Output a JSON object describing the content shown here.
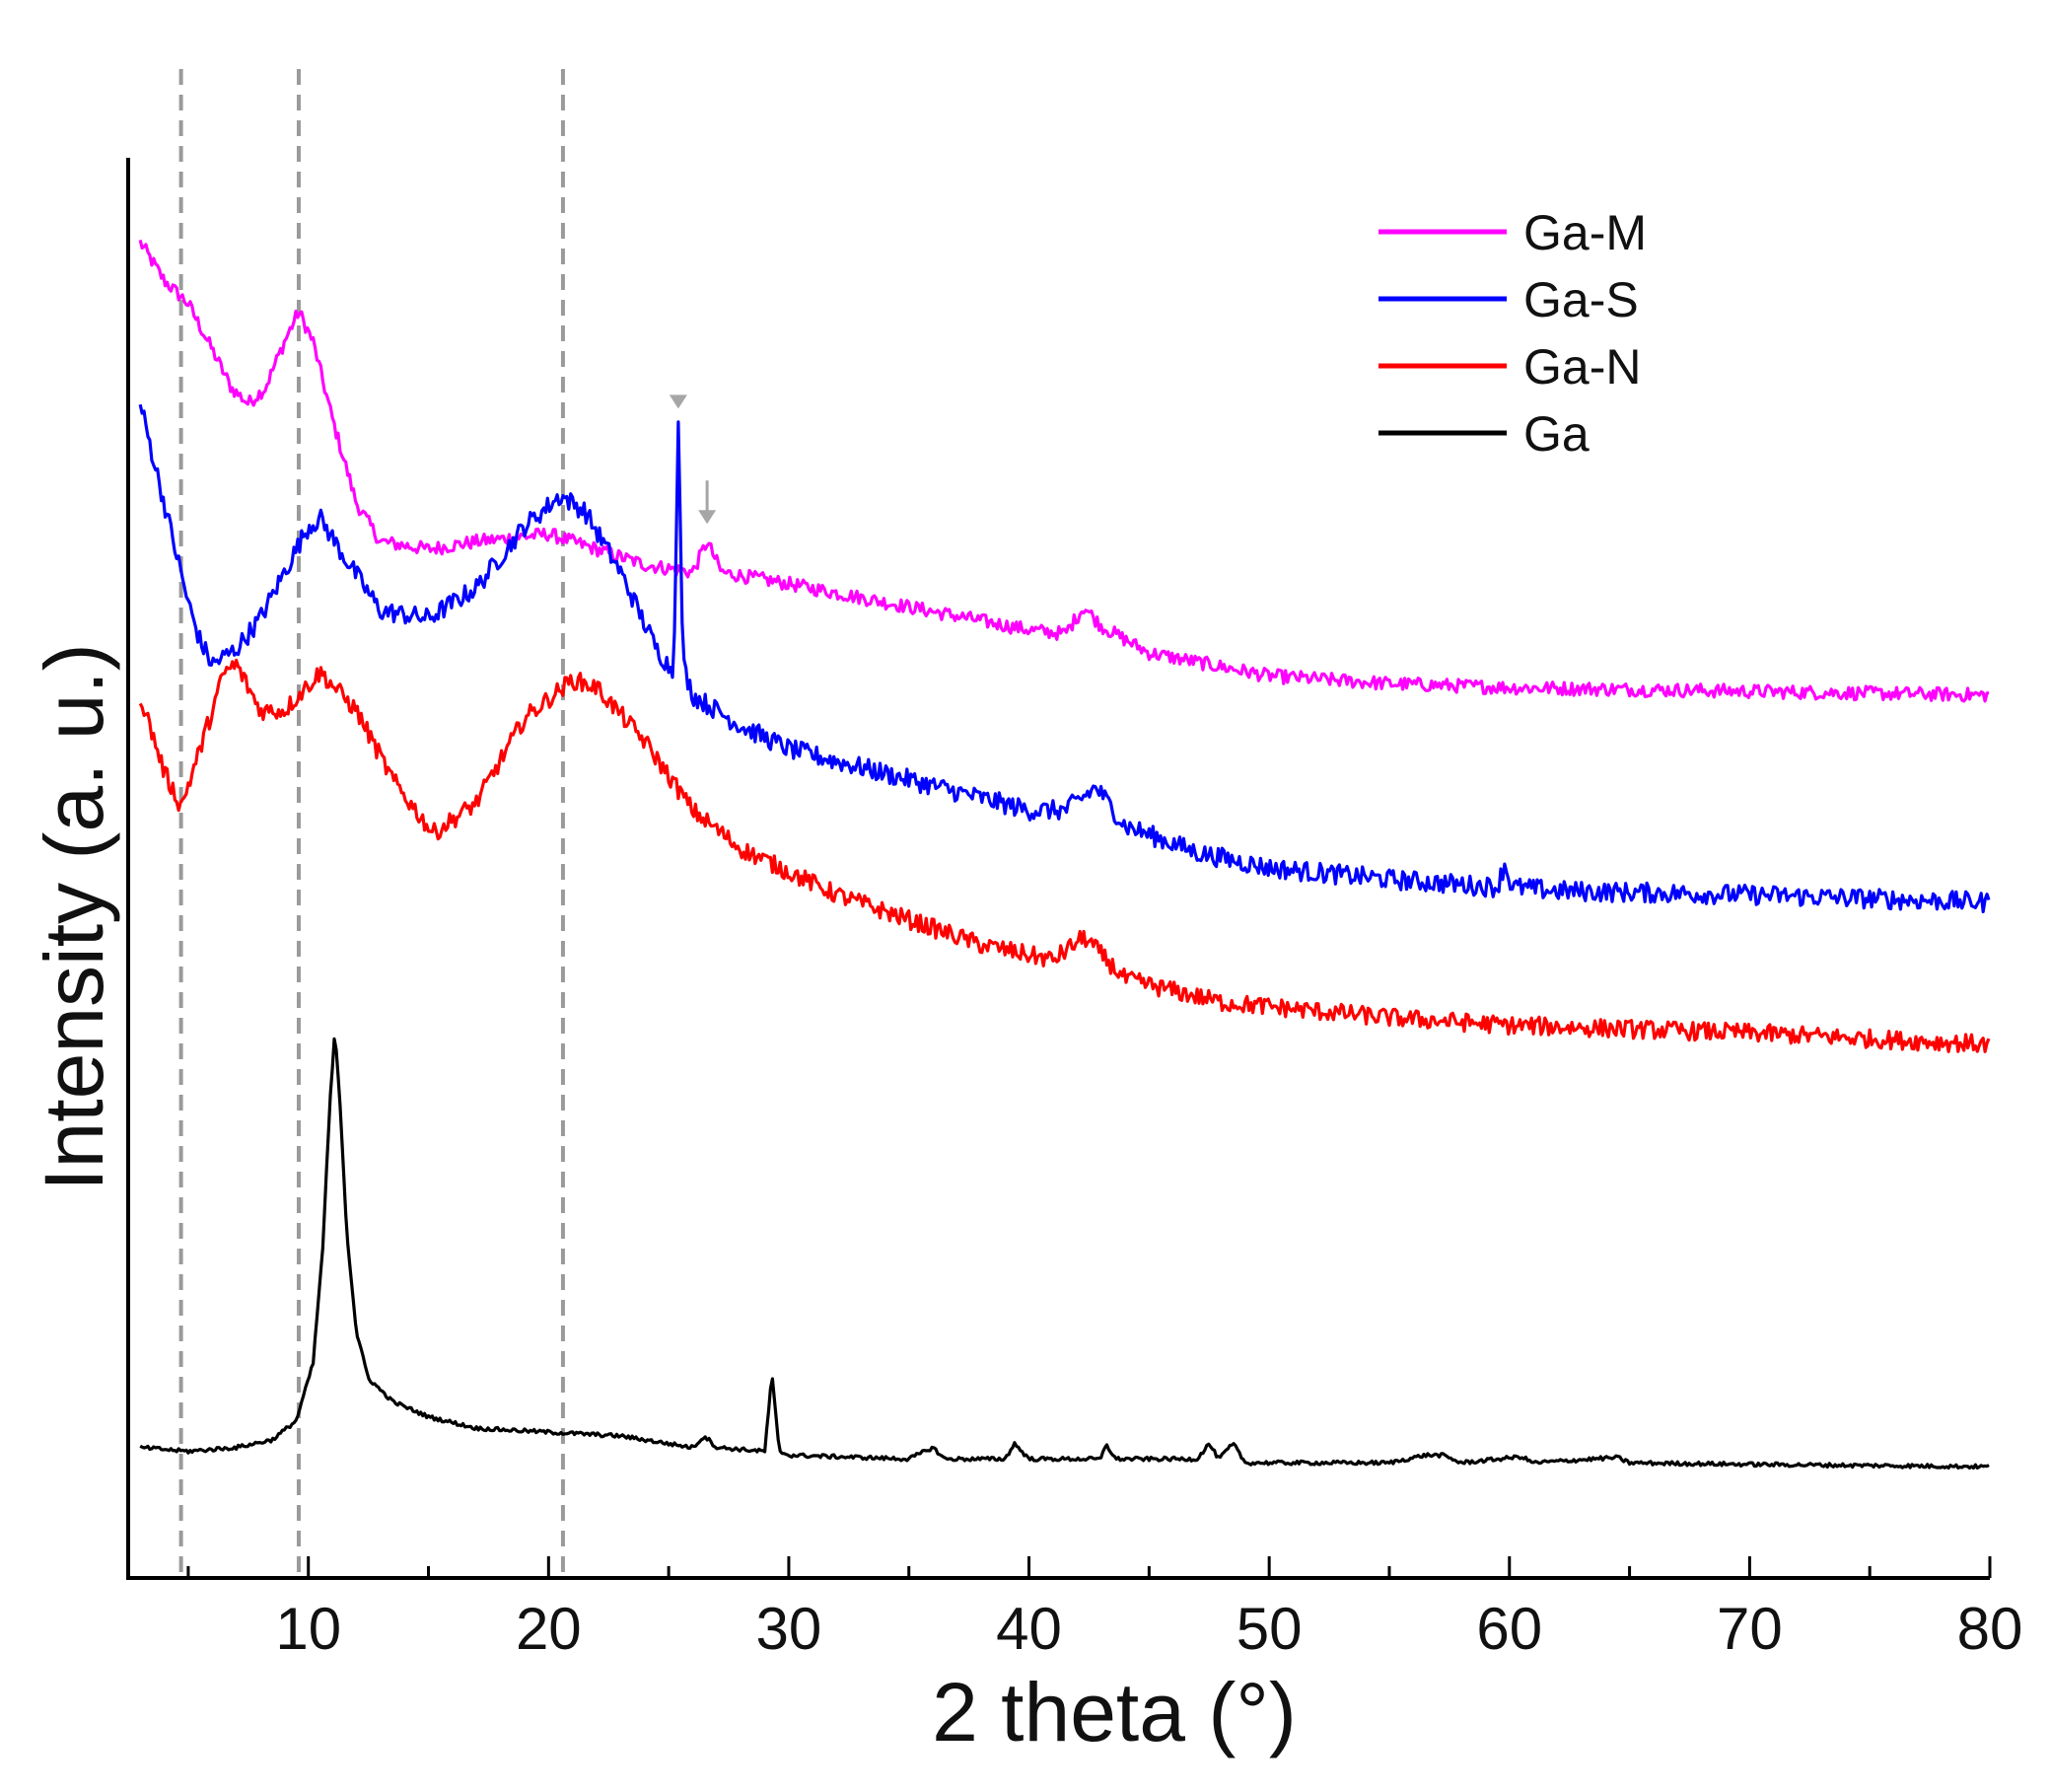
{
  "chart_data": {
    "type": "line",
    "title": "",
    "xlabel": "2 theta (°)",
    "ylabel": "Intensity (a. u.)",
    "xlim": [
      2.5,
      80
    ],
    "x_ticks": [
      10,
      20,
      30,
      40,
      50,
      60,
      70,
      80
    ],
    "x_tick_labels": [
      "10",
      "20",
      "30",
      "40",
      "50",
      "60",
      "70",
      "80"
    ],
    "y_ticks_shown": false,
    "grid": false,
    "legend_position": "top-right",
    "reference_lines_x": [
      4.7,
      9.6,
      20.6
    ],
    "annotation_arrows": [
      {
        "series": "Ga-M",
        "x": 26.6,
        "color": "#a6a6a6"
      },
      {
        "series": "Ga-S",
        "x": 25.4,
        "color": "#a6a6a6"
      }
    ],
    "series": [
      {
        "name": "Ga-M",
        "color": "#ff00ff",
        "x": [
          3,
          4,
          5,
          6,
          6.8,
          7.5,
          8.2,
          9,
          9.6,
          10.2,
          11,
          12,
          13,
          15,
          17,
          20,
          22,
          24,
          26,
          26.6,
          27.2,
          30,
          35,
          40,
          41.5,
          42.3,
          43,
          45,
          50,
          55,
          60,
          70,
          80
        ],
        "values": [
          99,
          94,
          91,
          85,
          80,
          78,
          80,
          86,
          90,
          86,
          76,
          65,
          60,
          59,
          60,
          61,
          59,
          57,
          56,
          60,
          56,
          54.5,
          51.5,
          48.5,
          48,
          51.5,
          49,
          45.5,
          42.5,
          41.5,
          41,
          40.5,
          40
        ]
      },
      {
        "name": "Ga-S",
        "color": "#0000ff",
        "x": [
          3,
          4,
          5,
          5.5,
          6,
          7,
          8,
          9,
          10,
          10.5,
          11.5,
          13,
          15,
          17,
          19,
          20.5,
          21.5,
          23,
          24.5,
          25.2,
          25.4,
          25.6,
          26,
          28,
          30,
          35,
          40,
          41.5,
          42.8,
          44,
          47,
          50,
          55,
          59.5,
          59.8,
          60.1,
          62,
          70,
          80
        ],
        "values": [
          78,
          65,
          52,
          47,
          44,
          46,
          50,
          56,
          62,
          63,
          58,
          51,
          50,
          54,
          62,
          66,
          64,
          56,
          46,
          43,
          75,
          44,
          40,
          36,
          33,
          29,
          25,
          25,
          28,
          23,
          19.5,
          17.5,
          16,
          15,
          18,
          15,
          14.5,
          14,
          13
        ]
      },
      {
        "name": "Ga-N",
        "color": "#ff0000",
        "x": [
          3,
          4,
          4.7,
          5.5,
          6.5,
          7,
          8,
          9,
          10.5,
          12,
          13.5,
          15.2,
          17,
          19,
          21,
          22,
          24,
          26,
          28,
          32,
          38,
          41,
          42.3,
          44,
          48,
          55,
          60,
          70,
          80
        ],
        "values": [
          40,
          30,
          25.5,
          33,
          43,
          44,
          38,
          38,
          43,
          38,
          29,
          22,
          26,
          37,
          42,
          41,
          34,
          25,
          20,
          14,
          7.5,
          5.5,
          8.5,
          3,
          0,
          -2,
          -3,
          -4,
          -5.5
        ]
      },
      {
        "name": "Ga",
        "color": "#000000",
        "x": [
          3,
          5,
          7,
          8.5,
          9.5,
          10.2,
          10.6,
          10.9,
          11.1,
          11.3,
          11.6,
          12,
          12.5,
          13.5,
          15,
          17,
          20,
          23,
          26,
          26.5,
          27,
          29,
          29.3,
          29.6,
          30,
          35,
          36,
          36.5,
          39,
          39.4,
          40,
          43,
          43.2,
          43.6,
          47,
          47.5,
          47.9,
          48.5,
          49,
          55,
          56.5,
          57.2,
          58,
          60.5,
          61,
          64.5,
          65,
          70,
          80
        ],
        "values": [
          -58,
          -58.5,
          -58,
          -57,
          -54.5,
          -47,
          -32,
          -13,
          -4,
          -12,
          -30,
          -43,
          -49,
          -52,
          -54,
          -55.5,
          -56,
          -56.5,
          -58,
          -56.5,
          -58,
          -58.5,
          -48.5,
          -58.5,
          -59,
          -59.5,
          -58,
          -59.5,
          -59.5,
          -57.5,
          -59.5,
          -59.5,
          -57.5,
          -59.5,
          -59.5,
          -57.5,
          -59.5,
          -57.5,
          -60,
          -60,
          -59,
          -59,
          -60,
          -59.2,
          -60,
          -59.3,
          -60,
          -60.2,
          -60.5
        ]
      }
    ]
  }
}
